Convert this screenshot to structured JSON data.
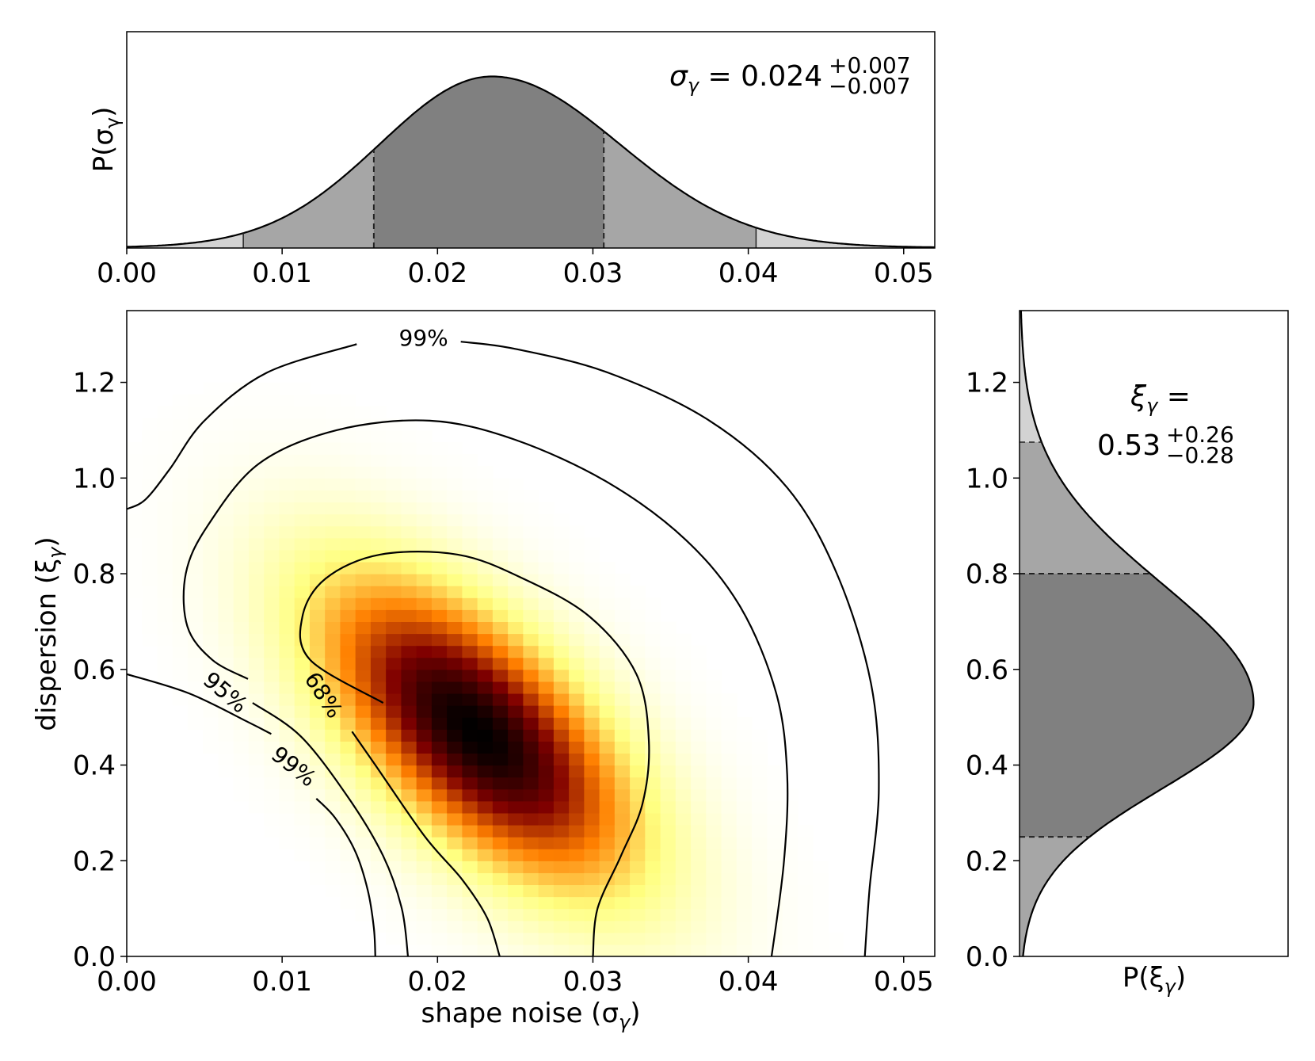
{
  "chart_data": [
    {
      "id": "top_marginal",
      "type": "area",
      "title": "",
      "ylabel": "P(σ",
      "ylabel_sub": "γ",
      "ylabel_close": ")",
      "xlim": [
        0.0,
        0.052
      ],
      "xticks": [
        "0.00",
        "0.01",
        "0.02",
        "0.03",
        "0.04",
        "0.05"
      ],
      "xtick_values": [
        0.0,
        0.01,
        0.02,
        0.03,
        0.04,
        0.05
      ],
      "distribution": {
        "kind": "skew-normal",
        "peak": 0.0235,
        "sigma_left": 0.0072,
        "sigma_right": 0.0082
      },
      "bands": {
        "c68": [
          0.0159,
          0.0307
        ],
        "c95": [
          0.0075,
          0.0405
        ]
      },
      "annotation": {
        "symbol": "σ",
        "sub": "γ",
        "eq": " = 0.024",
        "plus": "+0.007",
        "minus": "−0.007"
      }
    },
    {
      "id": "joint",
      "type": "heatmap",
      "xlabel": "shape noise (σ",
      "xlabel_sub": "γ",
      "xlabel_close": ")",
      "ylabel": "dispersion (ξ",
      "ylabel_sub": "γ",
      "ylabel_close": ")",
      "xlim": [
        0.0,
        0.052
      ],
      "ylim": [
        0.0,
        1.35
      ],
      "xticks": [
        "0.00",
        "0.01",
        "0.02",
        "0.03",
        "0.04",
        "0.05"
      ],
      "xtick_values": [
        0.0,
        0.01,
        0.02,
        0.03,
        0.04,
        0.05
      ],
      "yticks": [
        "0.0",
        "0.2",
        "0.4",
        "0.6",
        "0.8",
        "1.0",
        "1.2"
      ],
      "ytick_values": [
        0.0,
        0.2,
        0.4,
        0.6,
        0.8,
        1.0,
        1.2
      ],
      "colormap": "afmhot_r",
      "peak": [
        0.0225,
        0.47
      ],
      "contours": [
        {
          "label": "68%",
          "points": [
            [
              0.0165,
              0.53
            ],
            [
              0.0118,
              0.62
            ],
            [
              0.0113,
              0.71
            ],
            [
              0.0128,
              0.79
            ],
            [
              0.0163,
              0.84
            ],
            [
              0.0213,
              0.84
            ],
            [
              0.0255,
              0.79
            ],
            [
              0.0298,
              0.71
            ],
            [
              0.0328,
              0.59
            ],
            [
              0.0336,
              0.45
            ],
            [
              0.0332,
              0.32
            ],
            [
              0.0318,
              0.21
            ],
            [
              0.0303,
              0.1
            ],
            [
              0.03,
              0.0
            ]
          ]
        },
        {
          "label": "68%",
          "points": [
            [
              0.024,
              0.0
            ],
            [
              0.0232,
              0.08
            ],
            [
              0.0216,
              0.16
            ],
            [
              0.0192,
              0.25
            ],
            [
              0.016,
              0.4
            ],
            [
              0.0145,
              0.47
            ]
          ]
        },
        {
          "label": "95%",
          "points": [
            [
              0.0078,
              0.58
            ],
            [
              0.0055,
              0.62
            ],
            [
              0.0039,
              0.69
            ],
            [
              0.0038,
              0.8
            ],
            [
              0.0052,
              0.9
            ],
            [
              0.0085,
              1.03
            ],
            [
              0.0135,
              1.1
            ],
            [
              0.0195,
              1.12
            ],
            [
              0.025,
              1.08
            ],
            [
              0.031,
              0.99
            ],
            [
              0.036,
              0.87
            ],
            [
              0.0395,
              0.73
            ],
            [
              0.0418,
              0.55
            ],
            [
              0.0425,
              0.38
            ],
            [
              0.0423,
              0.2
            ],
            [
              0.0415,
              0.0
            ]
          ]
        },
        {
          "label": "95%",
          "points": [
            [
              0.0181,
              0.0
            ],
            [
              0.0177,
              0.1
            ],
            [
              0.0165,
              0.21
            ],
            [
              0.0143,
              0.33
            ],
            [
              0.0112,
              0.46
            ],
            [
              0.0081,
              0.53
            ]
          ]
        },
        {
          "label": "99%",
          "points": [
            [
              0.0,
              0.935
            ],
            [
              0.0012,
              0.955
            ],
            [
              0.0028,
              1.02
            ],
            [
              0.005,
              1.12
            ],
            [
              0.009,
              1.22
            ],
            [
              0.0148,
              1.28
            ]
          ]
        },
        {
          "label": "99%",
          "points": [
            [
              0.0215,
              1.285
            ],
            [
              0.025,
              1.27
            ],
            [
              0.031,
              1.22
            ],
            [
              0.0375,
              1.12
            ],
            [
              0.0425,
              0.98
            ],
            [
              0.0457,
              0.8
            ],
            [
              0.0479,
              0.57
            ],
            [
              0.0484,
              0.35
            ],
            [
              0.0478,
              0.14
            ],
            [
              0.0475,
              0.0
            ]
          ]
        },
        {
          "label": "99%",
          "points": [
            [
              0.0,
              0.59
            ],
            [
              0.004,
              0.55
            ],
            [
              0.0078,
              0.49
            ],
            [
              0.0093,
              0.465
            ]
          ]
        },
        {
          "label": "99%",
          "points": [
            [
              0.0122,
              0.33
            ],
            [
              0.0134,
              0.29
            ],
            [
              0.0147,
              0.22
            ],
            [
              0.0155,
              0.14
            ],
            [
              0.0159,
              0.06
            ],
            [
              0.016,
              0.0
            ]
          ]
        }
      ],
      "contour_labels": [
        {
          "text": "99%",
          "x": 0.0191,
          "y": 1.29,
          "angle": 0
        },
        {
          "text": "95%",
          "x": 0.0063,
          "y": 0.55,
          "angle": 40
        },
        {
          "text": "68%",
          "x": 0.0126,
          "y": 0.545,
          "angle": 57
        },
        {
          "text": "99%",
          "x": 0.0107,
          "y": 0.395,
          "angle": 38
        }
      ]
    },
    {
      "id": "right_marginal",
      "type": "area",
      "orientation": "horizontal",
      "xlabel": "P(ξ",
      "xlabel_sub": "γ",
      "xlabel_close": ")",
      "ylim": [
        0.0,
        1.35
      ],
      "yticks": [
        "0.0",
        "0.2",
        "0.4",
        "0.6",
        "0.8",
        "1.0",
        "1.2"
      ],
      "ytick_values": [
        0.0,
        0.2,
        0.4,
        0.6,
        0.8,
        1.0,
        1.2
      ],
      "distribution": {
        "kind": "skew-normal",
        "peak": 0.53,
        "sigma_below": 0.18,
        "sigma_above": 0.25,
        "max_fraction": 0.87
      },
      "bands": {
        "c68": [
          0.25,
          0.8
        ],
        "c95": [
          0.0,
          1.075
        ]
      },
      "annotation": {
        "symbol": "ξ",
        "sub": "γ",
        "eq": " =",
        "value": "0.53",
        "plus": "+0.26",
        "minus": "−0.28"
      }
    }
  ]
}
